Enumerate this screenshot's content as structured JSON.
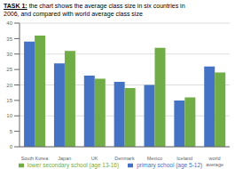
{
  "chart_data": {
    "type": "bar",
    "title": "TASK 1:",
    "subtitle": "the chart shows the average class size in six countries in\n2006, and compared with world average class size",
    "categories": [
      "South Korea",
      "Japan",
      "UK",
      "Denmark",
      "Mexico",
      "Iceland",
      "world\naverage"
    ],
    "series": [
      {
        "name": "primary school (age 5-12)",
        "color": "#4472C4",
        "values": [
          34,
          27,
          23,
          21,
          20,
          15,
          26
        ]
      },
      {
        "name": "lower secondary school (age 13-16)",
        "color": "#70AD47",
        "values": [
          36,
          31,
          22,
          19,
          32,
          16,
          24
        ]
      }
    ],
    "ylim": [
      0,
      40
    ],
    "yticks": [
      0,
      5,
      10,
      15,
      20,
      25,
      30,
      35,
      40
    ],
    "grid": true,
    "legend": "bottom"
  }
}
